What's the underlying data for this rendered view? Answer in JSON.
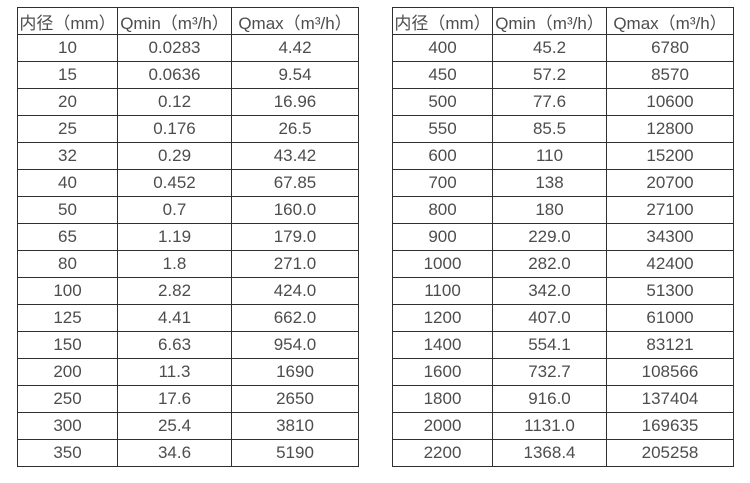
{
  "colors": {
    "border": "#2f2f2f",
    "text": "#4d4d4d",
    "background": "#ffffff"
  },
  "columns": [
    "内径（mm）",
    "Qmin（m³/h）",
    "Qmax（m³/h）"
  ],
  "tables": [
    {
      "rows": [
        [
          "10",
          "0.0283",
          "4.42"
        ],
        [
          "15",
          "0.0636",
          "9.54"
        ],
        [
          "20",
          "0.12",
          "16.96"
        ],
        [
          "25",
          "0.176",
          "26.5"
        ],
        [
          "32",
          "0.29",
          "43.42"
        ],
        [
          "40",
          "0.452",
          "67.85"
        ],
        [
          "50",
          "0.7",
          "160.0"
        ],
        [
          "65",
          "1.19",
          "179.0"
        ],
        [
          "80",
          "1.8",
          "271.0"
        ],
        [
          "100",
          "2.82",
          "424.0"
        ],
        [
          "125",
          "4.41",
          "662.0"
        ],
        [
          "150",
          "6.63",
          "954.0"
        ],
        [
          "200",
          "11.3",
          "1690"
        ],
        [
          "250",
          "17.6",
          "2650"
        ],
        [
          "300",
          "25.4",
          "3810"
        ],
        [
          "350",
          "34.6",
          "5190"
        ]
      ]
    },
    {
      "rows": [
        [
          "400",
          "45.2",
          "6780"
        ],
        [
          "450",
          "57.2",
          "8570"
        ],
        [
          "500",
          "77.6",
          "10600"
        ],
        [
          "550",
          "85.5",
          "12800"
        ],
        [
          "600",
          "110",
          "15200"
        ],
        [
          "700",
          "138",
          "20700"
        ],
        [
          "800",
          "180",
          "27100"
        ],
        [
          "900",
          "229.0",
          "34300"
        ],
        [
          "1000",
          "282.0",
          "42400"
        ],
        [
          "1100",
          "342.0",
          "51300"
        ],
        [
          "1200",
          "407.0",
          "61000"
        ],
        [
          "1400",
          "554.1",
          "83121"
        ],
        [
          "1600",
          "732.7",
          "108566"
        ],
        [
          "1800",
          "916.0",
          "137404"
        ],
        [
          "2000",
          "1131.0",
          "169635"
        ],
        [
          "2200",
          "1368.4",
          "205258"
        ]
      ]
    }
  ]
}
